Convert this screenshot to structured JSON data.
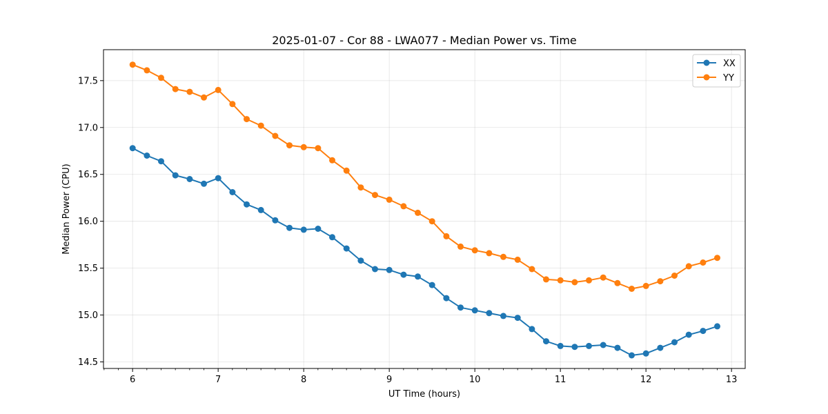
{
  "chart_data": {
    "type": "line",
    "title": "2025-01-07 - Cor 88 - LWA077 - Median Power vs. Time",
    "xlabel": "UT Time (hours)",
    "ylabel": "Median Power (CPU)",
    "xlim": [
      5.66,
      13.16
    ],
    "ylim": [
      14.43,
      17.83
    ],
    "xticks": [
      6,
      7,
      8,
      9,
      10,
      11,
      12,
      13
    ],
    "xtick_labels": [
      "6",
      "7",
      "8",
      "9",
      "10",
      "11",
      "12",
      "13"
    ],
    "yticks": [
      14.5,
      15.0,
      15.5,
      16.0,
      16.5,
      17.0,
      17.5
    ],
    "ytick_labels": [
      "14.5",
      "15.0",
      "15.5",
      "16.0",
      "16.5",
      "17.0",
      "17.5"
    ],
    "grid": true,
    "legend_position": "top-right",
    "x": [
      6.0,
      6.167,
      6.333,
      6.5,
      6.667,
      6.833,
      7.0,
      7.167,
      7.333,
      7.5,
      7.667,
      7.833,
      8.0,
      8.167,
      8.333,
      8.5,
      8.667,
      8.833,
      9.0,
      9.167,
      9.333,
      9.5,
      9.667,
      9.833,
      10.0,
      10.167,
      10.333,
      10.5,
      10.667,
      10.833,
      11.0,
      11.167,
      11.333,
      11.5,
      11.667,
      11.833,
      12.0,
      12.167,
      12.333,
      12.5,
      12.667,
      12.833
    ],
    "series": [
      {
        "name": "XX",
        "color": "#1f77b4",
        "values": [
          16.78,
          16.7,
          16.64,
          16.49,
          16.45,
          16.4,
          16.46,
          16.31,
          16.18,
          16.12,
          16.01,
          15.93,
          15.91,
          15.92,
          15.83,
          15.71,
          15.58,
          15.49,
          15.48,
          15.43,
          15.41,
          15.32,
          15.18,
          15.08,
          15.05,
          15.02,
          14.99,
          14.97,
          14.85,
          14.72,
          14.67,
          14.66,
          14.67,
          14.68,
          14.65,
          14.57,
          14.59,
          14.65,
          14.71,
          14.79,
          14.83,
          14.88
        ]
      },
      {
        "name": "YY",
        "color": "#ff7f0e",
        "values": [
          17.67,
          17.61,
          17.53,
          17.41,
          17.38,
          17.32,
          17.4,
          17.25,
          17.09,
          17.02,
          16.91,
          16.81,
          16.79,
          16.78,
          16.65,
          16.54,
          16.36,
          16.28,
          16.23,
          16.16,
          16.09,
          16.0,
          15.84,
          15.73,
          15.69,
          15.66,
          15.62,
          15.59,
          15.49,
          15.38,
          15.37,
          15.35,
          15.37,
          15.4,
          15.34,
          15.28,
          15.31,
          15.36,
          15.42,
          15.52,
          15.56,
          15.61
        ]
      }
    ]
  }
}
